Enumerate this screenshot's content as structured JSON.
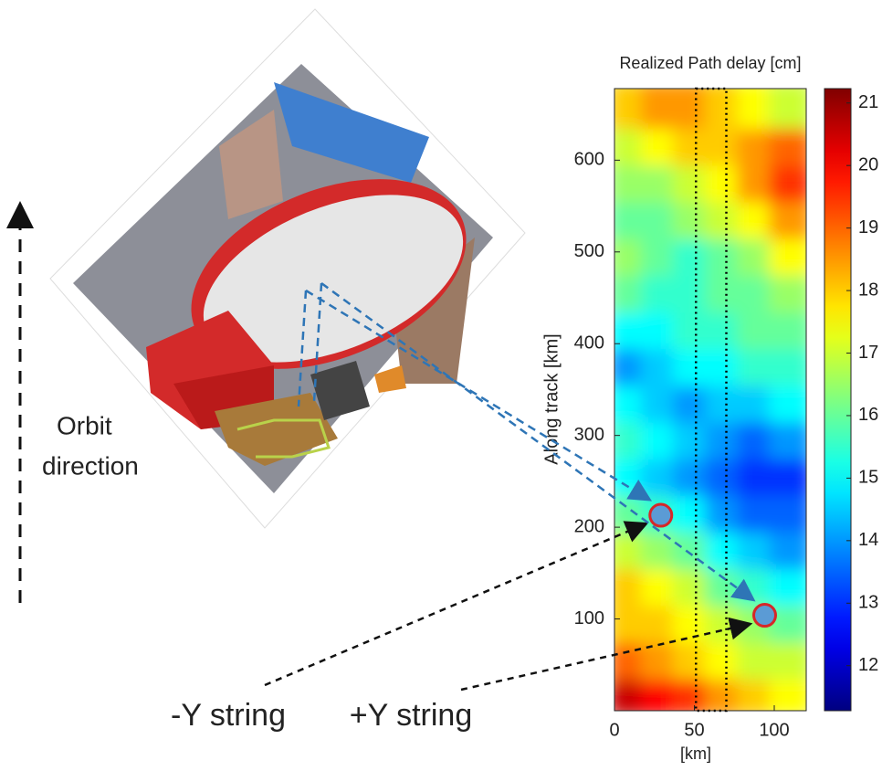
{
  "chart_data": {
    "type": "heatmap",
    "title": "Realized Path delay [cm]",
    "x_label": "[km]",
    "y_label": "Along track [km]",
    "x": [
      10,
      30,
      50,
      70,
      90,
      110
    ],
    "y": [
      20,
      60,
      100,
      140,
      180,
      220,
      260,
      300,
      340,
      380,
      420,
      460,
      500,
      540,
      580,
      620,
      660
    ],
    "values": [
      [
        20.5,
        20,
        19.5,
        18.5,
        18,
        17.5
      ],
      [
        19,
        18.5,
        18,
        17.5,
        17,
        17
      ],
      [
        18,
        18,
        17.5,
        17,
        16.5,
        16
      ],
      [
        18,
        17.5,
        17,
        16,
        15.5,
        15
      ],
      [
        17,
        16.5,
        16,
        15,
        14.5,
        14
      ],
      [
        16,
        15.5,
        15,
        14,
        13.5,
        13.5
      ],
      [
        15,
        14.5,
        14,
        13.5,
        13,
        13
      ],
      [
        15.5,
        15,
        14.5,
        14,
        13.5,
        14
      ],
      [
        15,
        14.5,
        14,
        14.5,
        14.5,
        15
      ],
      [
        14,
        14.5,
        15,
        15,
        15.5,
        15.5
      ],
      [
        15,
        15,
        15.5,
        15.5,
        16,
        16
      ],
      [
        16,
        15.5,
        15.5,
        16,
        16,
        16.5
      ],
      [
        16.5,
        16,
        15.5,
        16,
        16.5,
        17.5
      ],
      [
        16,
        16,
        16.5,
        17,
        17.5,
        18.5
      ],
      [
        16.5,
        16.5,
        17,
        17.5,
        18.5,
        19.5
      ],
      [
        17,
        17.5,
        18,
        18,
        18.5,
        19
      ],
      [
        18,
        18.5,
        18.5,
        18,
        17.5,
        17
      ]
    ],
    "colormap": "jet",
    "xlim": [
      0,
      120
    ],
    "xticks": [
      0,
      50,
      100
    ],
    "ylim": [
      0,
      678
    ],
    "yticks": [
      100,
      200,
      300,
      400,
      500,
      600
    ],
    "clim": [
      11.28,
      21.23
    ],
    "cticks": [
      12,
      13,
      14,
      15,
      16,
      17,
      18,
      19,
      20,
      21
    ],
    "band_xlim": [
      51,
      70
    ],
    "points": [
      {
        "label": "-Y string",
        "x": 29,
        "y": 213
      },
      {
        "label": "+Y string",
        "x": 94,
        "y": 104
      }
    ],
    "orbit_label": [
      "Orbit",
      "direction"
    ]
  }
}
